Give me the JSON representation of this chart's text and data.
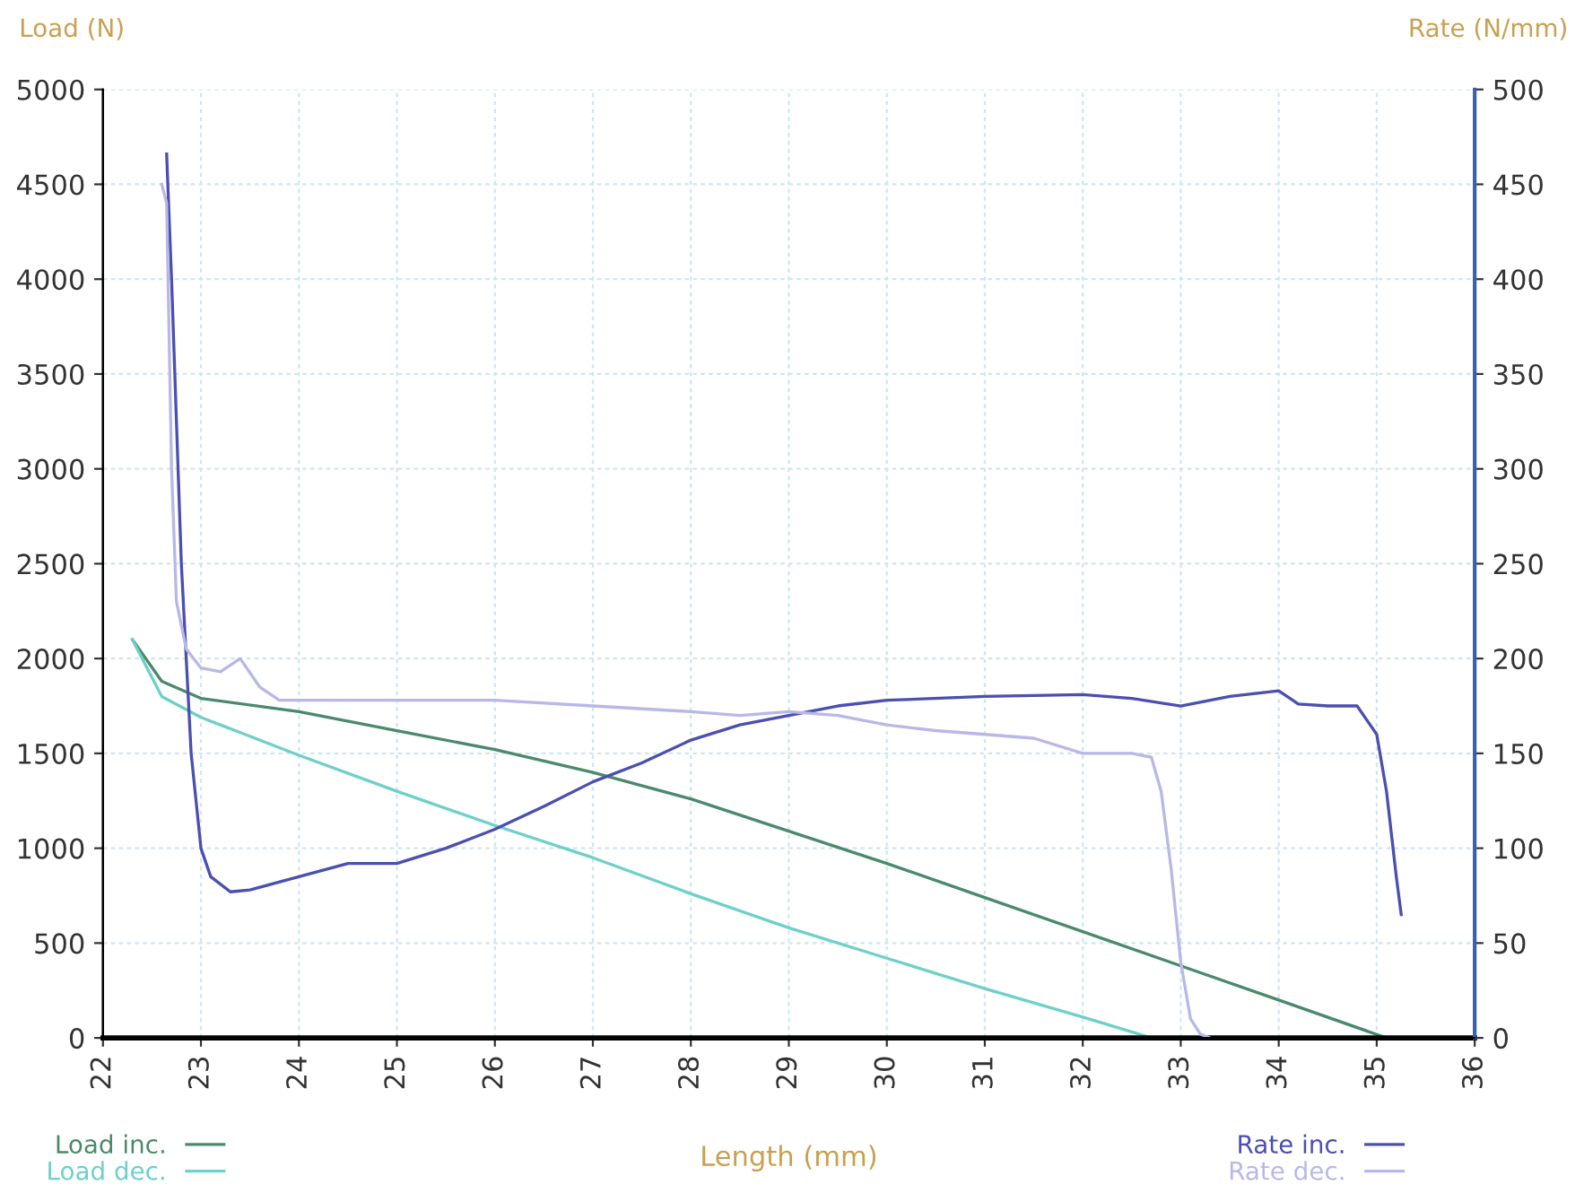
{
  "chart_data": {
    "type": "line",
    "xlabel": "Length (mm)",
    "ylabel": "Load (N)",
    "y2label": "Rate (N/mm)",
    "xlim": [
      22,
      36
    ],
    "xticks": [
      22,
      23,
      24,
      25,
      26,
      27,
      28,
      29,
      30,
      31,
      32,
      33,
      34,
      35,
      36
    ],
    "ylim": [
      0,
      5000
    ],
    "yticks": [
      0,
      500,
      1000,
      1500,
      2000,
      2500,
      3000,
      3500,
      4000,
      4500,
      5000
    ],
    "y2lim": [
      0,
      500
    ],
    "y2ticks": [
      0,
      50,
      100,
      150,
      200,
      250,
      300,
      350,
      400,
      450,
      500
    ],
    "grid": true,
    "legend": "bottom",
    "marker": "none",
    "line_style": "solid",
    "series": [
      {
        "name": "Load inc.",
        "color": "#4a8a6a",
        "x": [
          22.3,
          22.6,
          23,
          24,
          25,
          26,
          27,
          28,
          29,
          30,
          31,
          32,
          33,
          34,
          35.1
        ],
        "values": [
          2100,
          1880,
          1790,
          1720,
          1620,
          1520,
          1400,
          1260,
          1090,
          920,
          740,
          560,
          380,
          200,
          0
        ]
      },
      {
        "name": "Load dec.",
        "color": "#6ed0c8",
        "x": [
          22.3,
          22.6,
          23,
          24,
          25,
          26,
          27,
          28,
          29,
          30,
          31,
          32,
          32.7
        ],
        "values": [
          2100,
          1800,
          1690,
          1490,
          1300,
          1120,
          950,
          760,
          580,
          420,
          260,
          110,
          0
        ]
      },
      {
        "name": "Rate inc.",
        "color": "#4a4fb0",
        "axis": "y2",
        "x": [
          22.65,
          22.7,
          22.8,
          22.9,
          23.0,
          23.1,
          23.3,
          23.5,
          24,
          24.5,
          25,
          25.5,
          26,
          26.5,
          27,
          27.5,
          28,
          28.5,
          29,
          29.5,
          30,
          31,
          32,
          32.5,
          33,
          33.5,
          34,
          34.2,
          34.5,
          34.8,
          35,
          35.1,
          35.2,
          35.25
        ],
        "values": [
          466,
          400,
          250,
          150,
          100,
          85,
          77,
          78,
          85,
          92,
          92,
          100,
          110,
          122,
          135,
          145,
          157,
          165,
          170,
          175,
          178,
          180,
          181,
          179,
          175,
          180,
          183,
          176,
          175,
          175,
          160,
          130,
          85,
          65
        ]
      },
      {
        "name": "Rate dec.",
        "color": "#b8b8e8",
        "axis": "y2",
        "x": [
          22.6,
          22.65,
          22.7,
          22.75,
          22.85,
          23,
          23.2,
          23.4,
          23.6,
          23.8,
          24,
          25,
          26,
          27,
          28,
          28.5,
          29,
          29.5,
          30,
          30.5,
          31,
          31.5,
          32,
          32.5,
          32.7,
          32.8,
          32.9,
          33.0,
          33.1,
          33.2,
          33.3
        ],
        "values": [
          450,
          440,
          300,
          230,
          205,
          195,
          193,
          200,
          185,
          178,
          178,
          178,
          178,
          175,
          172,
          170,
          172,
          170,
          165,
          162,
          160,
          158,
          150,
          150,
          148,
          130,
          90,
          40,
          10,
          2,
          0
        ]
      }
    ]
  }
}
